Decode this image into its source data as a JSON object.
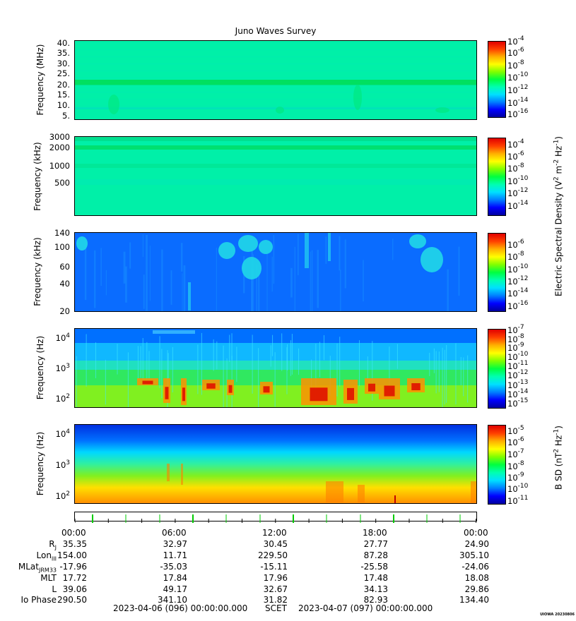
{
  "title": "Juno Waves Survey",
  "colors": {
    "colormap": [
      "#0000a0",
      "#0000ff",
      "#0080ff",
      "#00e0ff",
      "#00ffb0",
      "#00ff40",
      "#80ff00",
      "#ffff00",
      "#ffb000",
      "#ff4000",
      "#e00000"
    ],
    "frame": "#000000",
    "marker": "#00cc00"
  },
  "chart_data": [
    {
      "type": "heatmap",
      "name": "panel-1",
      "ylabel": "Frequency (MHz)",
      "yticks": [
        "40.",
        "35.",
        "30.",
        "25.",
        "20.",
        "15.",
        "10.",
        "5."
      ],
      "yrange": [
        3.5,
        41
      ],
      "colorbar": {
        "ticks": [
          [
            "10",
            "-4"
          ],
          [
            "10",
            "-6"
          ],
          [
            "10",
            "-8"
          ],
          [
            "10",
            "-10"
          ],
          [
            "10",
            "-12"
          ],
          [
            "10",
            "-14"
          ],
          [
            "10",
            "-16"
          ]
        ],
        "range_log": [
          -17,
          -4
        ]
      },
      "background": "mostly uniform ~1e-13, with a narrow enhanced band near 21 MHz"
    },
    {
      "type": "heatmap",
      "name": "panel-2",
      "ylabel": "Frequency (kHz)",
      "yticks": [
        "3000",
        "2000",
        "1000",
        "500"
      ],
      "yrange": [
        150,
        3000
      ],
      "colorbar": {
        "ticks": [
          [
            "10",
            "-4"
          ],
          [
            "10",
            "-6"
          ],
          [
            "10",
            "-8"
          ],
          [
            "10",
            "-10"
          ],
          [
            "10",
            "-12"
          ],
          [
            "10",
            "-14"
          ]
        ],
        "range_log": [
          -15,
          -3
        ]
      },
      "background": "uniform ~1e-13 with banding near 1000 and 2000 kHz"
    },
    {
      "type": "heatmap",
      "name": "panel-3",
      "ylabel": "Frequency (kHz)",
      "yticks": [
        "140",
        "100",
        "60",
        "40",
        "20"
      ],
      "yrange": [
        20,
        140
      ],
      "colorbar": {
        "ticks": [
          [
            "10",
            "-6"
          ],
          [
            "10",
            "-8"
          ],
          [
            "10",
            "-10"
          ],
          [
            "10",
            "-12"
          ],
          [
            "10",
            "-14"
          ],
          [
            "10",
            "-16"
          ]
        ],
        "range_log": [
          -17,
          -5
        ]
      },
      "background": "mostly ~1e-14 with patches ~1e-12"
    },
    {
      "type": "heatmap",
      "name": "panel-4",
      "ylabel": "Frequency (Hz)",
      "yticks": [
        [
          "10",
          "4"
        ],
        [
          "10",
          "3"
        ],
        [
          "10",
          "2"
        ]
      ],
      "yrange_log": [
        1.7,
        4.3
      ],
      "colorbar": {
        "ticks": [
          [
            "10",
            "-7"
          ],
          [
            "10",
            "-8"
          ],
          [
            "10",
            "-9"
          ],
          [
            "10",
            "-10"
          ],
          [
            "10",
            "-11"
          ],
          [
            "10",
            "-12"
          ],
          [
            "10",
            "-13"
          ],
          [
            "10",
            "-14"
          ],
          [
            "10",
            "-15"
          ]
        ],
        "range_log": [
          -15,
          -7
        ]
      },
      "background": "intense emission (~1e-8) below ~500 Hz in bursts"
    },
    {
      "type": "heatmap",
      "name": "panel-5",
      "ylabel": "Frequency (Hz)",
      "yticks": [
        [
          "10",
          "4"
        ],
        [
          "10",
          "3"
        ],
        [
          "10",
          "2"
        ]
      ],
      "yrange_log": [
        1.7,
        4.3
      ],
      "colorbar": {
        "ticks": [
          [
            "10",
            "-5"
          ],
          [
            "10",
            "-6"
          ],
          [
            "10",
            "-7"
          ],
          [
            "10",
            "-8"
          ],
          [
            "10",
            "-9"
          ],
          [
            "10",
            "-10"
          ],
          [
            "10",
            "-11"
          ]
        ],
        "range_log": [
          -11,
          -4.5
        ]
      },
      "background": "smooth gradient, ~1e-6 at 100 Hz to ~1e-11 at 10 kHz"
    }
  ],
  "colorbar_labels": {
    "electric": "Electric Spectral Density (V",
    "electric_sup1": "2",
    "electric_mid": " m",
    "electric_sup2": "-2",
    "electric_mid2": " Hz",
    "electric_sup3": "-1",
    "electric_end": ")",
    "magnetic": "B SD (nT",
    "magnetic_sup1": "2",
    "magnetic_mid": " Hz",
    "magnetic_sup2": "-1",
    "magnetic_end": ")"
  },
  "time_axis": {
    "labels": [
      "00:00",
      "06:00",
      "12:00",
      "18:00",
      "00:00"
    ]
  },
  "ephemeris": {
    "rows": [
      {
        "label": "R",
        "sub": "J",
        "values": [
          "35.35",
          "32.97",
          "30.45",
          "27.77",
          "24.90"
        ]
      },
      {
        "label": "Lon",
        "sub": "III",
        "values": [
          "154.00",
          "11.71",
          "229.50",
          "87.28",
          "305.10"
        ]
      },
      {
        "label": "MLat",
        "sub": "JRM33",
        "values": [
          "-17.96",
          "-35.03",
          "-15.11",
          "-25.58",
          "-24.06"
        ]
      },
      {
        "label": "MLT",
        "sub": "",
        "values": [
          "17.72",
          "17.84",
          "17.96",
          "17.48",
          "18.08"
        ]
      },
      {
        "label": "L",
        "sub": "",
        "values": [
          "39.06",
          "49.17",
          "32.67",
          "34.13",
          "29.86"
        ]
      },
      {
        "label": "Io Phase",
        "sub": "",
        "values": [
          "290.50",
          "341.10",
          "31.82",
          "82.93",
          "134.40"
        ]
      }
    ]
  },
  "footer": {
    "start": "2023-04-06 (096) 00:00:00.000",
    "center": "SCET",
    "end": "2023-04-07 (097) 00:00:00.000"
  },
  "credit": "UIOWA 20230806"
}
